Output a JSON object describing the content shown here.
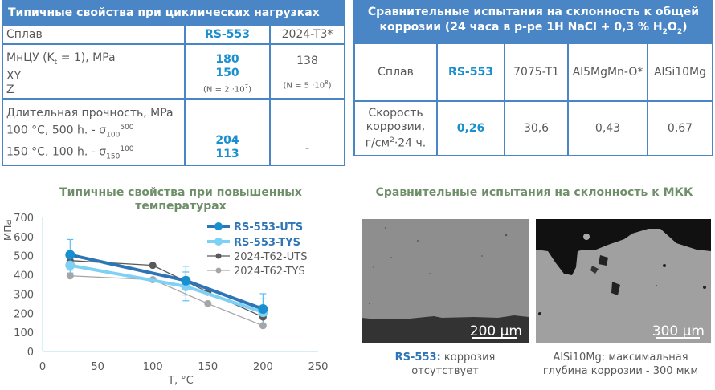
{
  "fatigue_table": {
    "title": "Типичные свойства при циклических нагрузках",
    "header_row": {
      "label": "Сплав",
      "rs553": "RS-553",
      "other": "2024-T3*"
    },
    "row1": {
      "label_line1_pre": "МнЦУ (K",
      "label_line1_sub": "t",
      "label_line1_post": " = 1), MPa",
      "label_line2": "XY",
      "label_line3": "Z",
      "rs553_xy": "180",
      "rs553_z": "150",
      "rs553_note_pre": "(N = 2 ·10",
      "rs553_note_sup": "7",
      "rs553_note_post": ")",
      "other_value": "138",
      "other_note_pre": "(N = 5 ·10",
      "other_note_sup": "8",
      "other_note_post": ")"
    },
    "row2": {
      "label_line1": "Длительная прочность, MPa",
      "label_line2_pre": "100 °C, 500 h. - σ",
      "label_line2_sub": "100",
      "label_line2_sup": "500",
      "label_line3_pre": "150 °C, 100 h. - σ",
      "label_line3_sub": "150",
      "label_line3_sup": "100",
      "rs553_v1": "204",
      "rs553_v2": "113",
      "other_value": "-"
    }
  },
  "corrosion_table": {
    "title_line1": "Сравнительные испытания на склонность к общей",
    "title_line2_pre": "коррозии (24 часа в р-ре 1Н NaCl + 0,3 % H",
    "title_sub1": "2",
    "title_mid": "O",
    "title_sub2": "2",
    "title_post": ")",
    "header_row": [
      "Сплав",
      "RS-553",
      "7075-T1",
      "Al5MgMn-O*",
      "AlSi10Mg"
    ],
    "rate_label_line1": "Скорость",
    "rate_label_line2": "коррозии,",
    "rate_label_line3_pre": "г/см",
    "rate_label_sup": "2",
    "rate_label_line3_post": "·24 ч.",
    "rate_values": [
      "0,26",
      "30,6",
      "0,43",
      "0,67"
    ]
  },
  "chart_data": {
    "type": "line",
    "title": "Типичные свойства при повышенных температурах",
    "xlabel": "T, °C",
    "ylabel": "МПа",
    "xlim": [
      0,
      250
    ],
    "ylim": [
      0,
      700
    ],
    "x_ticks": [
      "0",
      "50",
      "100",
      "150",
      "200",
      "250"
    ],
    "y_ticks": [
      "0",
      "100",
      "200",
      "300",
      "400",
      "500",
      "600",
      "700"
    ],
    "grid": false,
    "legend_position": "upper right",
    "series": [
      {
        "name": "RS-553-UTS",
        "color": "#2e75b6",
        "x": [
          25,
          130,
          200
        ],
        "values": [
          505,
          370,
          222
        ],
        "error": [
          80,
          75,
          80
        ]
      },
      {
        "name": "RS-553-TYS",
        "color": "#7fd0f5",
        "x": [
          25,
          130,
          200
        ],
        "values": [
          450,
          340,
          205
        ],
        "error": [
          40,
          75,
          70
        ]
      },
      {
        "name": "2024-T62-UTS",
        "color": "#595959",
        "x": [
          25,
          100,
          150,
          200
        ],
        "values": [
          475,
          450,
          310,
          180
        ]
      },
      {
        "name": "2024-T62-TYS",
        "color": "#a6a6a6",
        "x": [
          25,
          100,
          150,
          200
        ],
        "values": [
          395,
          375,
          250,
          135
        ]
      }
    ]
  },
  "mkk_section": {
    "title": "Сравнительные испытания на склонность к МКК",
    "left_scale": "200 µm",
    "right_scale": "300 µm",
    "left_caption_bold": "RS-553:",
    "left_caption_line1": " коррозия",
    "left_caption_line2": "отсутствует",
    "right_caption_line1": "AlSi10Mg: максимальная",
    "right_caption_line2": "глубина коррозии -  300 мкм"
  }
}
